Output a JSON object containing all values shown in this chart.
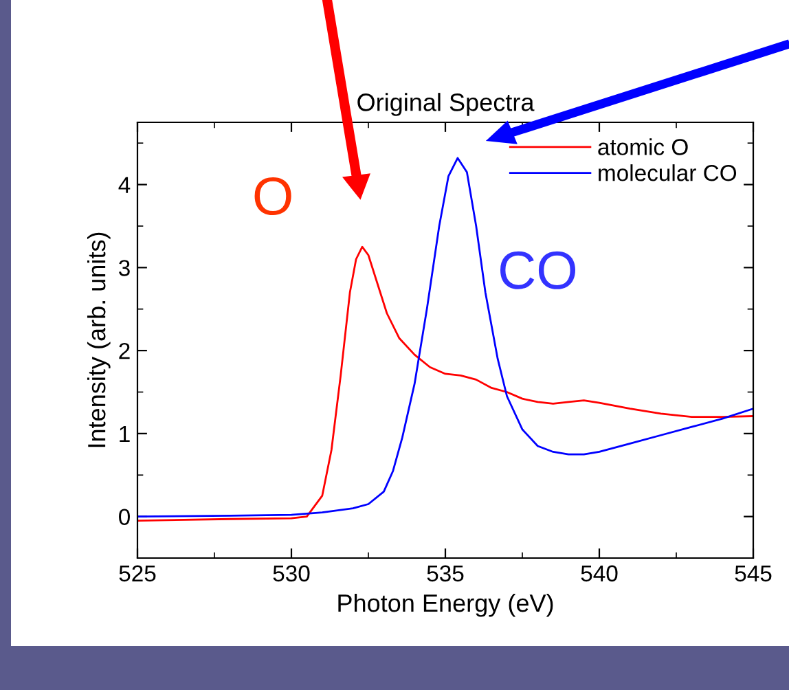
{
  "chart_data": {
    "type": "line",
    "title": "Original Spectra",
    "xlabel": "Photon Energy (eV)",
    "ylabel": "Intensity (arb. units)",
    "xlim": [
      525,
      545
    ],
    "xticks": [
      525,
      530,
      535,
      540,
      545
    ],
    "ylim": [
      -0.5,
      4.75
    ],
    "yticks": [
      0,
      1,
      2,
      3,
      4
    ],
    "grid": false,
    "legend": "top right",
    "line_style": "solid",
    "marker": "none",
    "series": [
      {
        "name": "atomic O",
        "color": "#ff0000",
        "x": [
          525,
          528,
          530,
          530.5,
          531,
          531.3,
          531.6,
          531.9,
          532.1,
          532.3,
          532.5,
          532.8,
          533.1,
          533.5,
          534,
          534.5,
          535,
          535.5,
          536,
          536.5,
          537,
          537.5,
          538,
          538.5,
          539,
          539.5,
          540,
          541,
          542,
          543,
          544,
          545
        ],
        "values": [
          -0.05,
          -0.03,
          -0.02,
          0.0,
          0.25,
          0.8,
          1.7,
          2.7,
          3.1,
          3.25,
          3.15,
          2.8,
          2.45,
          2.15,
          1.95,
          1.8,
          1.72,
          1.7,
          1.65,
          1.55,
          1.5,
          1.42,
          1.38,
          1.36,
          1.38,
          1.4,
          1.37,
          1.3,
          1.24,
          1.2,
          1.2,
          1.21
        ]
      },
      {
        "name": "molecular CO",
        "color": "#0000ff",
        "x": [
          525,
          528,
          530,
          531,
          532,
          532.5,
          533,
          533.3,
          533.6,
          534,
          534.4,
          534.8,
          535.1,
          535.4,
          535.7,
          536,
          536.3,
          536.7,
          537,
          537.5,
          538,
          538.5,
          539,
          539.5,
          540,
          541,
          542,
          543,
          544,
          545
        ],
        "values": [
          0.0,
          0.01,
          0.02,
          0.05,
          0.1,
          0.15,
          0.3,
          0.55,
          0.95,
          1.6,
          2.5,
          3.5,
          4.1,
          4.32,
          4.15,
          3.5,
          2.7,
          1.9,
          1.45,
          1.05,
          0.85,
          0.78,
          0.75,
          0.75,
          0.78,
          0.88,
          0.98,
          1.08,
          1.18,
          1.3
        ]
      }
    ],
    "annotations": [
      "O",
      "CO"
    ]
  }
}
